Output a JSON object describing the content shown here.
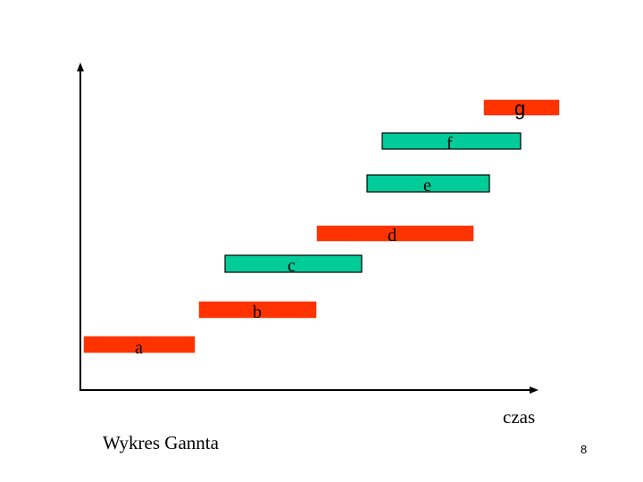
{
  "diagram": {
    "caption": "Wykres Gannta",
    "x_axis_label": "czas",
    "page_number": "8",
    "colors": {
      "red": "#ff3300",
      "green": "#00cc99",
      "axis": "#000000"
    },
    "tasks": [
      {
        "label": "a",
        "color": "red"
      },
      {
        "label": "b",
        "color": "red"
      },
      {
        "label": "c",
        "color": "green"
      },
      {
        "label": "d",
        "color": "red"
      },
      {
        "label": "e",
        "color": "green"
      },
      {
        "label": "f",
        "color": "green"
      },
      {
        "label": "g",
        "color": "red"
      }
    ]
  }
}
